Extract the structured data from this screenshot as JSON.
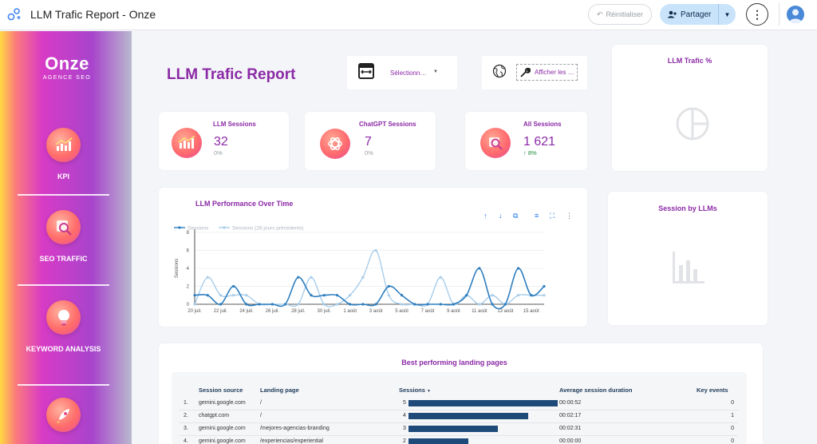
{
  "app": {
    "title": "LLM Trafic Report - Onze",
    "reset_label": "Réinitialiser",
    "share_label": "Partager"
  },
  "sidebar": {
    "logo_name": "Onze",
    "logo_tagline": "AGENCE SEO",
    "items": [
      {
        "label": "KPI",
        "icon": "chart-icon"
      },
      {
        "label": "SEO TRAFFIC",
        "icon": "magnifier-icon"
      },
      {
        "label": "KEYWORD ANALYSIS",
        "icon": "lightbulb-icon"
      },
      {
        "label": "",
        "icon": "rocket-icon"
      }
    ]
  },
  "report": {
    "title": "LLM Trafic Report",
    "date_select_placeholder": "Sélectionn…",
    "show_label": "Afficher les …"
  },
  "kpis": [
    {
      "title": "LLM Sessions",
      "value": "32",
      "delta": "0%",
      "icon": "chart-icon"
    },
    {
      "title": "ChatGPT Sessions",
      "value": "7",
      "delta": "0%",
      "icon": "chatgpt-icon"
    },
    {
      "title": "All Sessions",
      "value": "1 621",
      "delta": "8%",
      "delta_direction": "up",
      "icon": "search-chart-icon"
    }
  ],
  "llm_trafic_pct": {
    "title": "LLM Trafic %",
    "placeholder_icon": "pie-chart-icon"
  },
  "session_by_llms": {
    "title": "Session by LLMs",
    "placeholder_icon": "bar-chart-icon"
  },
  "chart_data": {
    "type": "line",
    "title": "LLM Performance Over Time",
    "ylabel": "Sessions",
    "xlabel": "",
    "ylim": [
      0,
      8
    ],
    "yticks": [
      0,
      2,
      4,
      6,
      8
    ],
    "x_tick_labels": [
      "20 juil.",
      "22 juil.",
      "24 juil.",
      "26 juil.",
      "28 juil.",
      "30 juil.",
      "1 août",
      "3 août",
      "5 août",
      "7 août",
      "9 août",
      "11 août",
      "13 août",
      "15 août"
    ],
    "x": [
      "20 juil.",
      "21 juil.",
      "22 juil.",
      "23 juil.",
      "24 juil.",
      "25 juil.",
      "26 juil.",
      "27 juil.",
      "28 juil.",
      "29 juil.",
      "30 juil.",
      "31 juil.",
      "1 août",
      "2 août",
      "3 août",
      "4 août",
      "5 août",
      "6 août",
      "7 août",
      "8 août",
      "9 août",
      "10 août",
      "11 août",
      "12 août",
      "13 août",
      "14 août",
      "15 août",
      "16 août"
    ],
    "series": [
      {
        "name": "Sessions",
        "color": "#2e7ebf",
        "values": [
          1,
          1,
          0,
          2,
          0,
          0,
          0,
          0,
          3,
          1,
          1,
          1,
          0,
          0,
          0,
          2,
          1,
          0,
          0,
          0,
          0,
          1,
          4,
          0,
          0,
          4,
          1,
          2
        ]
      },
      {
        "name": "Sessions (28 jours précédents)",
        "color": "#a8cdea",
        "values": [
          0,
          3,
          1,
          1,
          1,
          0,
          0,
          0,
          0,
          3,
          0,
          0,
          1,
          3,
          6,
          1,
          0,
          0,
          0,
          3,
          0,
          1,
          0,
          1,
          0,
          1,
          1,
          1
        ]
      }
    ],
    "grid": true,
    "legend_position": "top-left"
  },
  "table": {
    "title": "Best performing landing pages",
    "columns": [
      "Session source",
      "Landing page",
      "Sessions",
      "Average session duration",
      "Key events"
    ],
    "sort_indicator": "▼",
    "rows": [
      {
        "rank": "1.",
        "source": "gemini.google.com",
        "landing": "/",
        "sessions": 5,
        "duration": "00:00:52",
        "key_events": "0"
      },
      {
        "rank": "2.",
        "source": "chatgpt.com",
        "landing": "/",
        "sessions": 4,
        "duration": "00:02:17",
        "key_events": "1"
      },
      {
        "rank": "3.",
        "source": "gemini.google.com",
        "landing": "/mejores-agencias-branding",
        "sessions": 3,
        "duration": "00:02:31",
        "key_events": "0"
      },
      {
        "rank": "4.",
        "source": "gemini.google.com",
        "landing": "/experiencias/experiential",
        "sessions": 2,
        "duration": "00:00:00",
        "key_events": "0"
      }
    ]
  }
}
